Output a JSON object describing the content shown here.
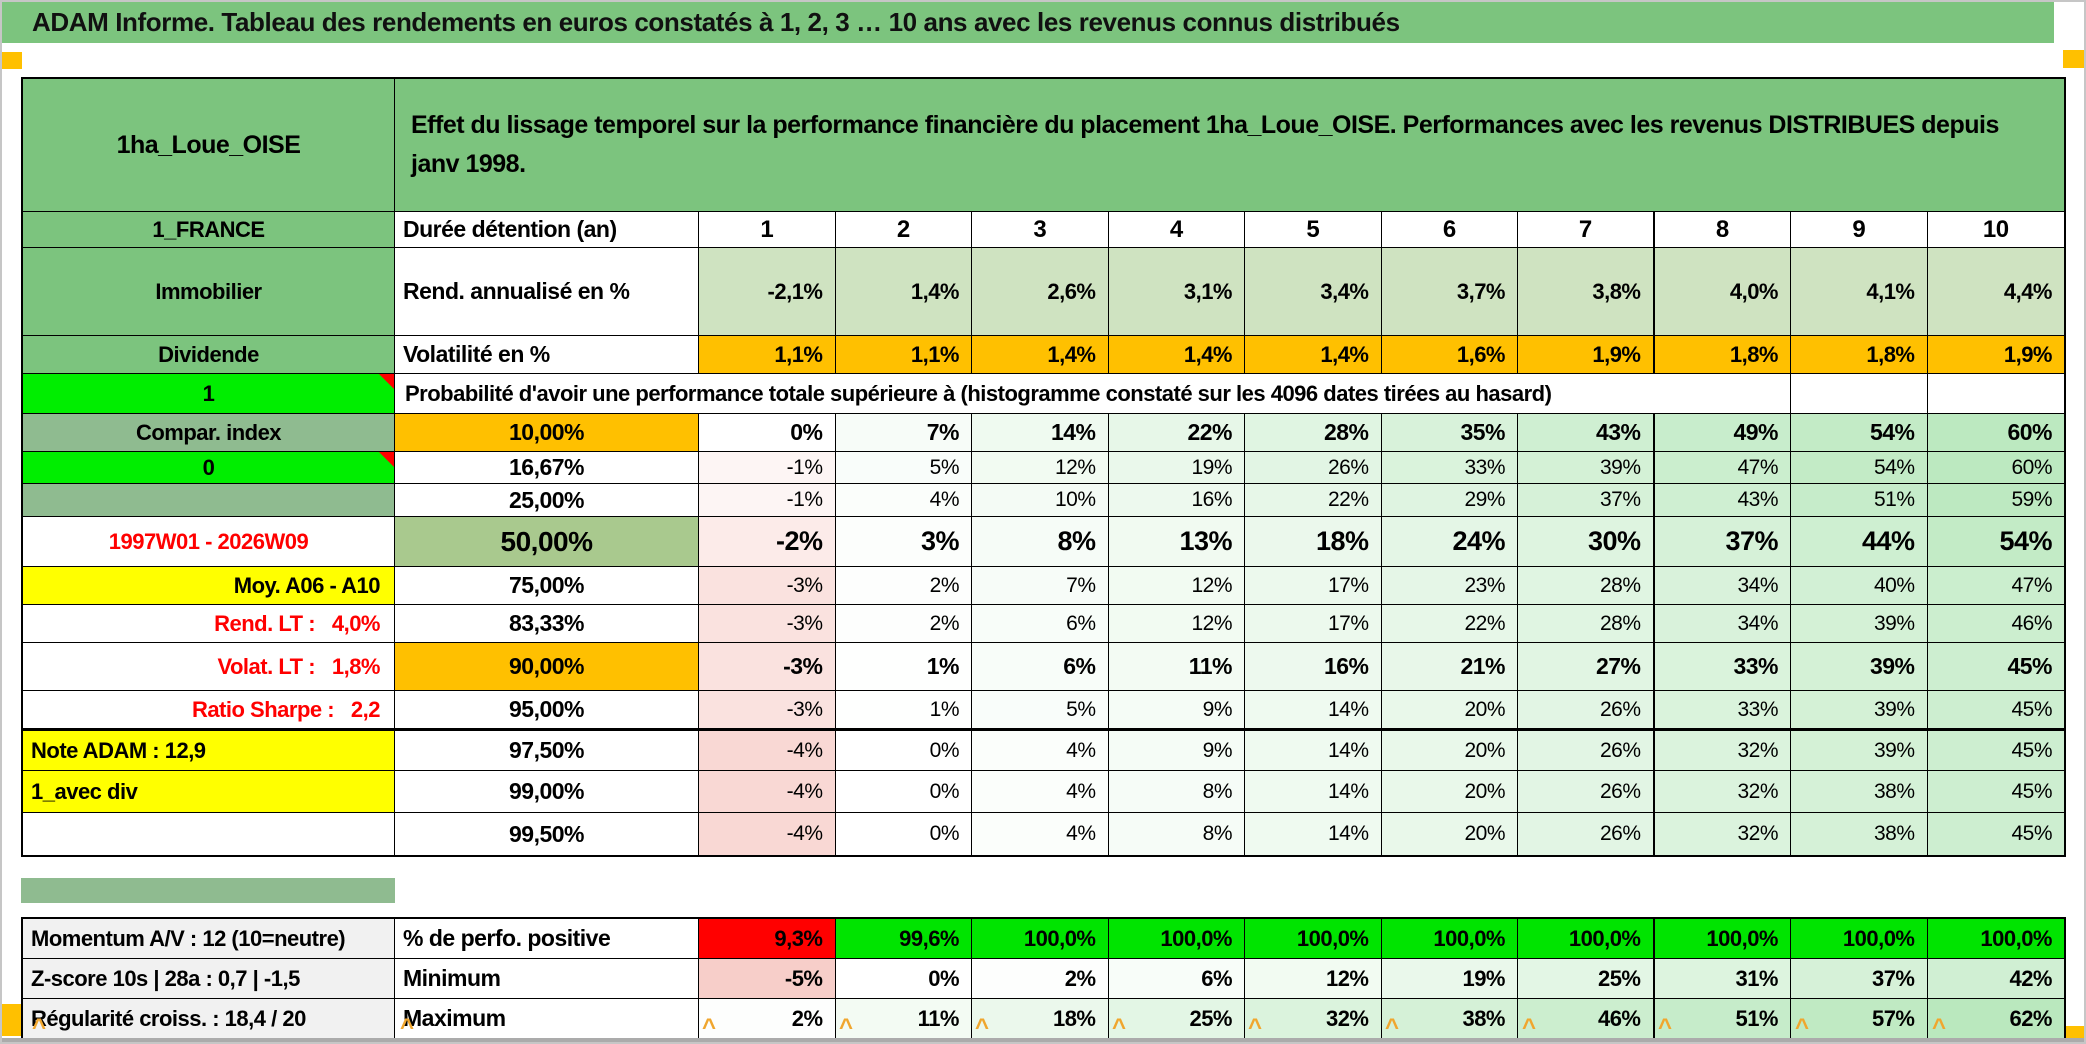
{
  "title": "ADAM Informe. Tableau des rendements en euros constatés à 1, 2, 3 … 10 ans avec les revenus connus distribués",
  "placement": {
    "name": "1ha_Loue_OISE",
    "description": "Effet du lissage temporel sur la performance financière du placement 1ha_Loue_OISE. Performances avec les revenus DISTRIBUES depuis janv 1998."
  },
  "left_labels": {
    "country": "1_FRANCE",
    "asset_class": "Immobilier",
    "income_type": "Dividende",
    "flag_top": "1",
    "compar_index": "Compar. index",
    "flag_bottom": "0",
    "blank1": "",
    "period": "1997W01 - 2026W09",
    "moy": "Moy. A06 - A10",
    "rend_lt": "Rend. LT :   4,0%",
    "volat_lt": "Volat. LT :   1,8%",
    "ratio_sharpe": "Ratio Sharpe :   2,2",
    "note_adam": "Note ADAM : 12,9",
    "avec_div": "1_avec div",
    "blank2": ""
  },
  "table": {
    "duration_label": "Durée détention (an)",
    "durations": [
      "1",
      "2",
      "3",
      "4",
      "5",
      "6",
      "7",
      "8",
      "9",
      "10"
    ],
    "rend_label": "Rend. annualisé en %",
    "rend_values": [
      "-2,1%",
      "1,4%",
      "2,6%",
      "3,1%",
      "3,4%",
      "3,7%",
      "3,8%",
      "4,0%",
      "4,1%",
      "4,4%"
    ],
    "volat_label": "Volatilité en %",
    "volat_values": [
      "1,1%",
      "1,1%",
      "1,4%",
      "1,4%",
      "1,4%",
      "1,6%",
      "1,9%",
      "1,8%",
      "1,8%",
      "1,9%"
    ],
    "prob_header": "Probabilité d'avoir une performance totale supérieure à (histogramme constaté sur les 4096 dates tirées au hasard)",
    "percentile_rows": [
      {
        "label": "10,00%",
        "values": [
          0,
          7,
          14,
          22,
          28,
          35,
          43,
          49,
          54,
          60
        ]
      },
      {
        "label": "16,67%",
        "values": [
          -1,
          5,
          12,
          19,
          26,
          33,
          39,
          47,
          54,
          60
        ]
      },
      {
        "label": "25,00%",
        "values": [
          -1,
          4,
          10,
          16,
          22,
          29,
          37,
          43,
          51,
          59
        ]
      },
      {
        "label": "50,00%",
        "values": [
          -2,
          3,
          8,
          13,
          18,
          24,
          30,
          37,
          44,
          54
        ]
      },
      {
        "label": "75,00%",
        "values": [
          -3,
          2,
          7,
          12,
          17,
          23,
          28,
          34,
          40,
          47
        ]
      },
      {
        "label": "83,33%",
        "values": [
          -3,
          2,
          6,
          12,
          17,
          22,
          28,
          34,
          39,
          46
        ]
      },
      {
        "label": "90,00%",
        "values": [
          -3,
          1,
          6,
          11,
          16,
          21,
          27,
          33,
          39,
          45
        ]
      },
      {
        "label": "95,00%",
        "values": [
          -3,
          1,
          5,
          9,
          14,
          20,
          26,
          33,
          39,
          45
        ]
      },
      {
        "label": "97,50%",
        "values": [
          -4,
          0,
          4,
          9,
          14,
          20,
          26,
          32,
          39,
          45
        ]
      },
      {
        "label": "99,00%",
        "values": [
          -4,
          0,
          4,
          8,
          14,
          20,
          26,
          32,
          38,
          45
        ]
      },
      {
        "label": "99,50%",
        "values": [
          -4,
          0,
          4,
          8,
          14,
          20,
          26,
          32,
          38,
          45
        ]
      }
    ]
  },
  "bottom": {
    "rows": [
      {
        "left": "Momentum A/V : 12 (10=neutre)",
        "label": "% de perfo. positive",
        "type": "perfo",
        "values": [
          "9,3%",
          "99,6%",
          "100,0%",
          "100,0%",
          "100,0%",
          "100,0%",
          "100,0%",
          "100,0%",
          "100,0%",
          "100,0%"
        ]
      },
      {
        "left": "Z-score 10s | 28a : 0,7 | -1,5",
        "label": "Minimum",
        "type": "scale",
        "values": [
          -5,
          0,
          2,
          6,
          12,
          19,
          25,
          31,
          37,
          42
        ]
      },
      {
        "left": "Régularité croiss. : 18,4 / 20",
        "label": "Maximum",
        "type": "scale",
        "values": [
          2,
          11,
          18,
          25,
          32,
          38,
          46,
          51,
          57,
          62
        ]
      }
    ]
  },
  "colors": {
    "header_green": "#7CC47E",
    "muted_green": "#8FBB90",
    "flag_green": "#00EE00",
    "orange": "#FFC000",
    "sage": "#A9C98E",
    "light_green": "#CFE3C1",
    "yellow": "#FFFF00",
    "red": "#FF0000",
    "perfo_green": "#00E400",
    "grey_label": "#F1F1F1",
    "data_green_max": "#BAE8BE",
    "data_pink_max": "#F7CEC9",
    "marker_orange": "#F0A62E",
    "scroll_grey": "#ABABAB"
  }
}
